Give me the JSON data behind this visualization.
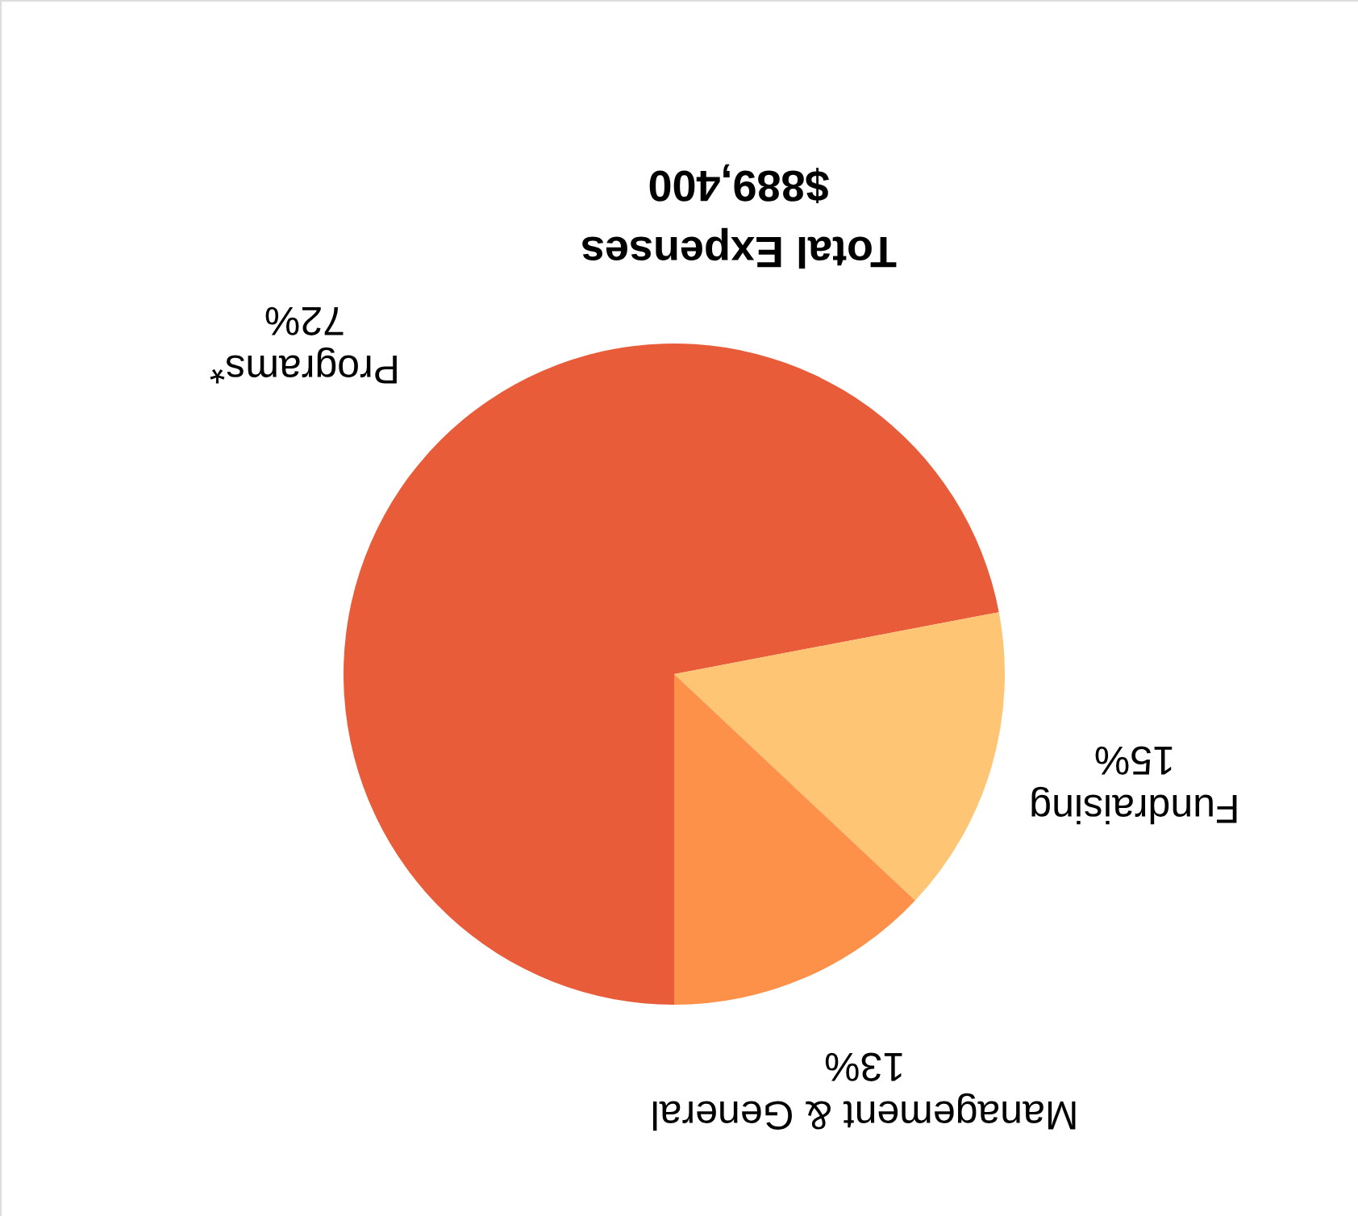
{
  "chart_data": {
    "type": "pie",
    "title": "Total Expenses",
    "subtitle": "$889,400",
    "categories": [
      "Programs*",
      "Fundraising",
      "Management & General"
    ],
    "values": [
      72,
      15,
      13
    ],
    "colors": [
      "#e85c3a",
      "#fec574",
      "#fd9149"
    ],
    "value_labels": [
      "72%",
      "15%",
      "13%"
    ]
  }
}
